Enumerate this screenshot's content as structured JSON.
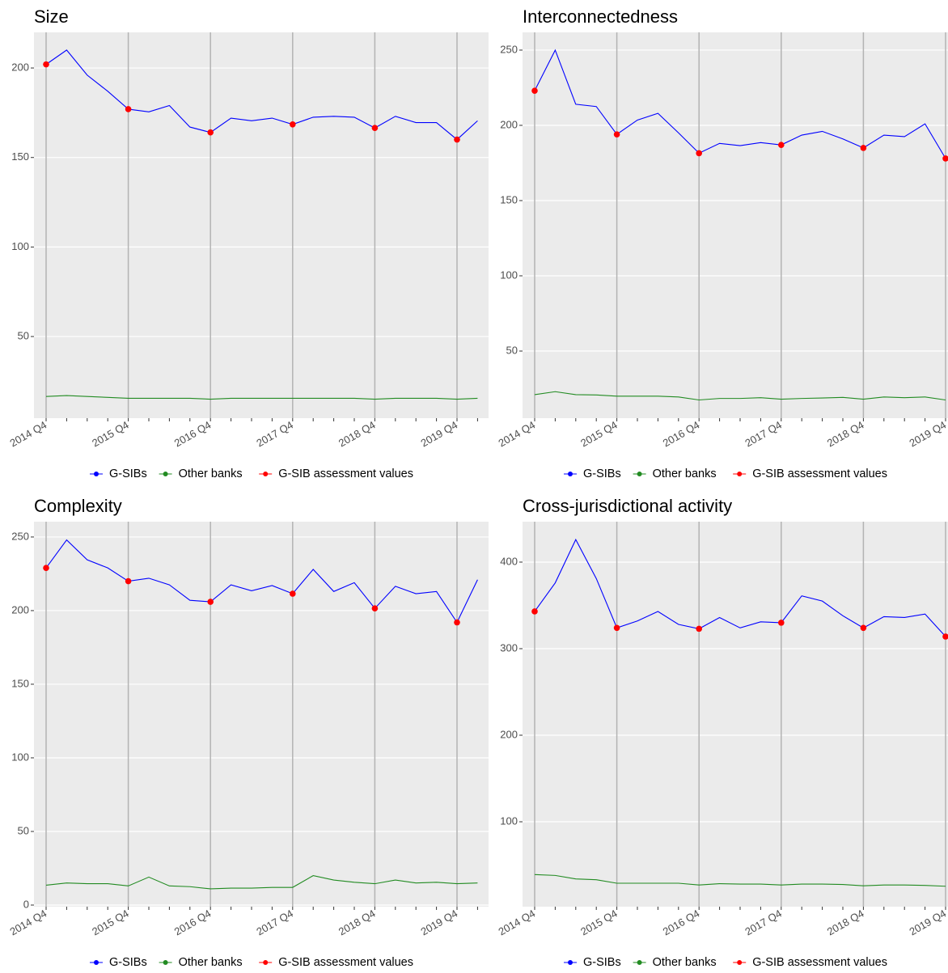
{
  "chart_data": [
    {
      "type": "line",
      "title": "Size",
      "categories": [
        "2014 Q4",
        null,
        null,
        null,
        "2015 Q4",
        null,
        null,
        null,
        "2016 Q4",
        null,
        null,
        null,
        "2017 Q4",
        null,
        null,
        null,
        "2018 Q4",
        null,
        null,
        null,
        "2019 Q4",
        null
      ],
      "series": [
        {
          "name": "G-SIBs",
          "color": "#0000FF",
          "style": "line",
          "values": [
            202,
            210,
            196,
            187,
            177,
            175.5,
            179,
            167,
            164,
            172,
            170.5,
            172,
            168.5,
            172.5,
            173,
            172.5,
            166.5,
            173,
            169.5,
            169.5,
            160,
            170.5
          ]
        },
        {
          "name": "Other banks",
          "color": "#228B22",
          "style": "line",
          "values": [
            16.5,
            17,
            16.5,
            16,
            15.5,
            15.5,
            15.5,
            15.5,
            15,
            15.5,
            15.5,
            15.5,
            15.5,
            15.5,
            15.5,
            15.5,
            15,
            15.5,
            15.5,
            15.5,
            15,
            15.5
          ]
        },
        {
          "name": "G-SIB assessment values",
          "color": "#FF0000",
          "style": "points",
          "values": [
            202,
            null,
            null,
            null,
            177,
            null,
            null,
            null,
            164,
            null,
            null,
            null,
            168.5,
            null,
            null,
            null,
            166.5,
            null,
            null,
            null,
            160,
            null
          ]
        }
      ],
      "ylim": [
        4.4,
        219.9
      ],
      "yticks": [
        50,
        100,
        150,
        200
      ],
      "grid": true,
      "legend": "bottom"
    },
    {
      "type": "line",
      "title": "Interconnectedness",
      "categories": [
        "2014 Q4",
        null,
        null,
        null,
        "2015 Q4",
        null,
        null,
        null,
        "2016 Q4",
        null,
        null,
        null,
        "2017 Q4",
        null,
        null,
        null,
        "2018 Q4",
        null,
        null,
        null,
        "2019 Q4"
      ],
      "series": [
        {
          "name": "G-SIBs",
          "color": "#0000FF",
          "style": "line",
          "values": [
            223,
            250,
            214,
            212.5,
            194,
            203.5,
            208,
            195,
            181.5,
            188,
            186.5,
            188.5,
            187,
            193.5,
            196,
            191,
            185,
            193.5,
            192.5,
            201,
            178
          ]
        },
        {
          "name": "Other banks",
          "color": "#228B22",
          "style": "line",
          "values": [
            21,
            23,
            21,
            20.8,
            20,
            20,
            20,
            19.5,
            17.5,
            18.5,
            18.5,
            19,
            18,
            18.5,
            18.8,
            19.2,
            18,
            19.5,
            19,
            19.5,
            17.5
          ]
        },
        {
          "name": "G-SIB assessment values",
          "color": "#FF0000",
          "style": "points",
          "values": [
            223,
            null,
            null,
            null,
            194,
            null,
            null,
            null,
            181.5,
            null,
            null,
            null,
            187,
            null,
            null,
            null,
            185,
            null,
            null,
            null,
            178
          ]
        }
      ],
      "ylim": [
        5.4,
        261.8
      ],
      "yticks": [
        50,
        100,
        150,
        200,
        250
      ],
      "grid": true,
      "legend": "bottom"
    },
    {
      "type": "line",
      "title": "Complexity",
      "categories": [
        "2014 Q4",
        null,
        null,
        null,
        "2015 Q4",
        null,
        null,
        null,
        "2016 Q4",
        null,
        null,
        null,
        "2017 Q4",
        null,
        null,
        null,
        "2018 Q4",
        null,
        null,
        null,
        "2019 Q4",
        null
      ],
      "series": [
        {
          "name": "G-SIBs",
          "color": "#0000FF",
          "style": "line",
          "values": [
            229,
            248,
            234.5,
            229,
            220,
            222,
            217.5,
            207,
            206,
            217.5,
            213.5,
            217,
            211.5,
            228,
            213,
            219,
            201.5,
            216.5,
            211.5,
            213,
            192,
            221
          ]
        },
        {
          "name": "Other banks",
          "color": "#228B22",
          "style": "line",
          "values": [
            13.5,
            15,
            14.5,
            14.5,
            13,
            19,
            13,
            12.5,
            11,
            11.5,
            11.5,
            12,
            12,
            20,
            17,
            15.5,
            14.5,
            17,
            15,
            15.5,
            14.5,
            15
          ]
        },
        {
          "name": "G-SIB assessment values",
          "color": "#FF0000",
          "style": "points",
          "values": [
            229,
            null,
            null,
            null,
            220,
            null,
            null,
            null,
            206,
            null,
            null,
            null,
            211.5,
            null,
            null,
            null,
            201.5,
            null,
            null,
            null,
            192,
            null
          ]
        }
      ],
      "ylim": [
        -1.1,
        260.4
      ],
      "yticks": [
        0,
        50,
        100,
        150,
        200,
        250
      ],
      "grid": true,
      "legend": "bottom"
    },
    {
      "type": "line",
      "title": "Cross-jurisdictional activity",
      "categories": [
        "2014 Q4",
        null,
        null,
        null,
        "2015 Q4",
        null,
        null,
        null,
        "2016 Q4",
        null,
        null,
        null,
        "2017 Q4",
        null,
        null,
        null,
        "2018 Q4",
        null,
        null,
        null,
        "2019 Q4"
      ],
      "series": [
        {
          "name": "G-SIBs",
          "color": "#0000FF",
          "style": "line",
          "values": [
            343,
            376,
            426,
            381,
            324,
            332,
            343,
            328,
            323,
            336,
            324,
            331,
            330,
            361,
            355,
            338,
            324,
            337,
            336,
            340,
            314
          ]
        },
        {
          "name": "Other banks",
          "color": "#228B22",
          "style": "line",
          "values": [
            39,
            38,
            34,
            33,
            29,
            29,
            29,
            29,
            27,
            28.5,
            28,
            28,
            27,
            28,
            28,
            27.5,
            26,
            27,
            27,
            26.5,
            25.5
          ]
        },
        {
          "name": "G-SIB assessment values",
          "color": "#FF0000",
          "style": "points",
          "values": [
            343,
            null,
            null,
            null,
            324,
            null,
            null,
            null,
            323,
            null,
            null,
            null,
            330,
            null,
            null,
            null,
            324,
            null,
            null,
            null,
            314
          ]
        }
      ],
      "ylim": [
        1.9,
        446.7
      ],
      "yticks": [
        100,
        200,
        300,
        400
      ],
      "grid": true,
      "legend": "bottom"
    }
  ]
}
